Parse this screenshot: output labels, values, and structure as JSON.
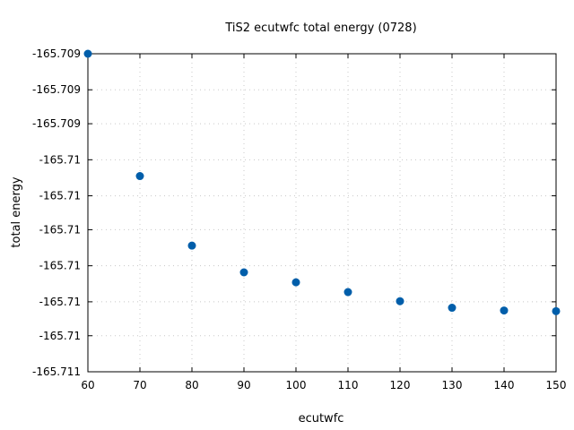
{
  "chart_data": {
    "type": "scatter",
    "title": "TiS2 ecutwfc total energy (0728)",
    "xlabel": "ecutwfc",
    "ylabel": "total energy",
    "xlim": [
      60,
      150
    ],
    "ylim": [
      -165.7105,
      -165.709
    ],
    "x_ticks": [
      60,
      70,
      80,
      90,
      100,
      110,
      120,
      130,
      140,
      150
    ],
    "x_tick_labels": [
      "60",
      "70",
      "80",
      "90",
      "100",
      "110",
      "120",
      "130",
      "140",
      "150"
    ],
    "y_ticks": [
      -165.709,
      -165.70917,
      -165.70933,
      -165.7095,
      -165.70967,
      -165.70983,
      -165.71,
      -165.71017,
      -165.71033,
      -165.7105
    ],
    "y_tick_labels": [
      "-165.709",
      "-165.709",
      "-165.709",
      "-165.71",
      "-165.71",
      "-165.71",
      "-165.71",
      "-165.71",
      "-165.71",
      "-165.711"
    ],
    "grid": true,
    "marker_color": "#005eaa",
    "series": [
      {
        "x": [
          60,
          70,
          80,
          90,
          100,
          110,
          120,
          130,
          140,
          150
        ],
        "y": [
          -165.709,
          -165.709577,
          -165.709905,
          -165.710031,
          -165.710078,
          -165.710124,
          -165.710167,
          -165.710198,
          -165.710211,
          -165.710214
        ]
      }
    ]
  }
}
